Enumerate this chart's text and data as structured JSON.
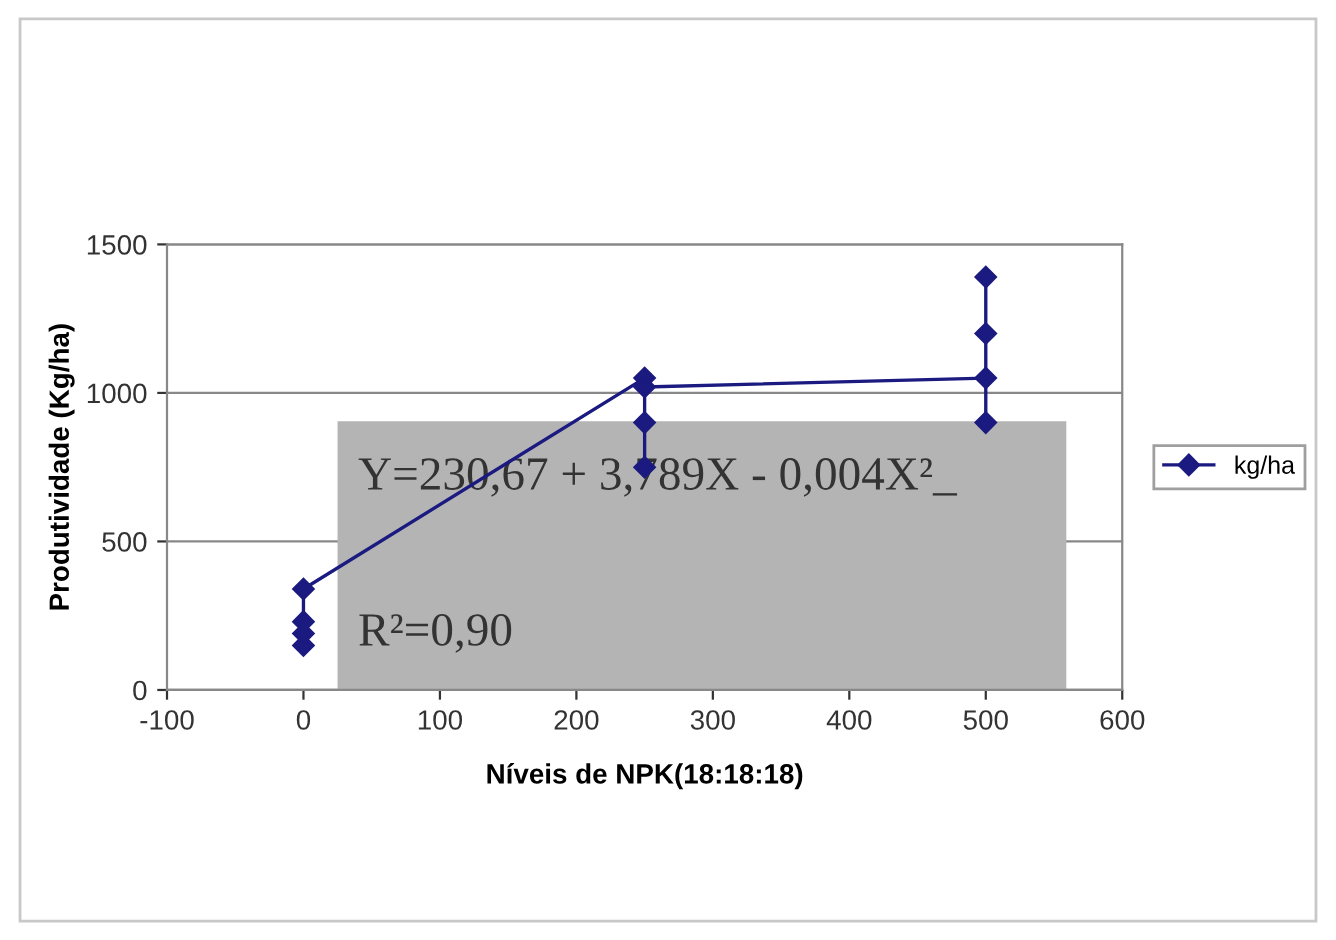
{
  "chart_data": {
    "type": "line",
    "xlabel": "Níveis de NPK(18:18:18)",
    "ylabel": "Produtividade (Kg/ha)",
    "series": [
      {
        "name": "kg/ha",
        "color": "#1a1a80",
        "x": [
          0,
          0,
          0,
          0,
          250,
          250,
          250,
          250,
          500,
          500,
          500,
          500
        ],
        "values": [
          150,
          190,
          230,
          340,
          1050,
          750,
          900,
          1020,
          1050,
          900,
          1200,
          1390
        ]
      }
    ],
    "annotations": [
      "Y=230,67 + 3,789X - 0,004X²_",
      "R²=0,90"
    ],
    "xlim": [
      -100,
      600
    ],
    "xticks": [
      -100,
      0,
      100,
      200,
      300,
      400,
      500,
      600
    ],
    "ylim": [
      0,
      1500
    ],
    "yticks": [
      0,
      500,
      1000,
      1500
    ],
    "grid": "y",
    "legend": "right",
    "marker": "diamond",
    "line_style": "solid"
  }
}
